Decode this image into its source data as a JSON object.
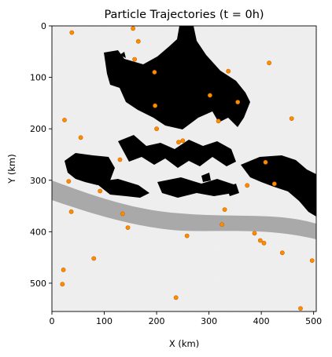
{
  "chart_data": {
    "type": "scatter",
    "title": "Particle Trajectories (t = 0h)",
    "xlabel": "X (km)",
    "ylabel": "Y (km)",
    "xlim": [
      0,
      505
    ],
    "ylim": [
      0,
      555
    ],
    "y_inverted": true,
    "grid": false,
    "background": "grayscale velocity field with black landmasses",
    "marker_color": "#ff8c00",
    "xticks": [
      0,
      100,
      200,
      300,
      400,
      500
    ],
    "yticks": [
      0,
      100,
      200,
      300,
      400,
      500
    ],
    "series": [
      {
        "name": "",
        "points": [
          {
            "x": 38,
            "y": 13
          },
          {
            "x": 155,
            "y": 5
          },
          {
            "x": 165,
            "y": 30
          },
          {
            "x": 158,
            "y": 65
          },
          {
            "x": 415,
            "y": 72
          },
          {
            "x": 196,
            "y": 90
          },
          {
            "x": 337,
            "y": 88
          },
          {
            "x": 302,
            "y": 135
          },
          {
            "x": 355,
            "y": 148
          },
          {
            "x": 197,
            "y": 155
          },
          {
            "x": 24,
            "y": 183
          },
          {
            "x": 458,
            "y": 180
          },
          {
            "x": 318,
            "y": 185
          },
          {
            "x": 200,
            "y": 200
          },
          {
            "x": 55,
            "y": 217
          },
          {
            "x": 250,
            "y": 223
          },
          {
            "x": 242,
            "y": 226
          },
          {
            "x": 130,
            "y": 260
          },
          {
            "x": 408,
            "y": 265
          },
          {
            "x": 32,
            "y": 302
          },
          {
            "x": 425,
            "y": 307
          },
          {
            "x": 373,
            "y": 310
          },
          {
            "x": 92,
            "y": 321
          },
          {
            "x": 330,
            "y": 357
          },
          {
            "x": 37,
            "y": 361
          },
          {
            "x": 135,
            "y": 365
          },
          {
            "x": 325,
            "y": 386
          },
          {
            "x": 145,
            "y": 392
          },
          {
            "x": 387,
            "y": 403
          },
          {
            "x": 258,
            "y": 408
          },
          {
            "x": 398,
            "y": 417
          },
          {
            "x": 405,
            "y": 422
          },
          {
            "x": 440,
            "y": 441
          },
          {
            "x": 80,
            "y": 452
          },
          {
            "x": 497,
            "y": 456
          },
          {
            "x": 22,
            "y": 474
          },
          {
            "x": 20,
            "y": 502
          },
          {
            "x": 237,
            "y": 528
          },
          {
            "x": 475,
            "y": 549
          }
        ]
      }
    ]
  }
}
